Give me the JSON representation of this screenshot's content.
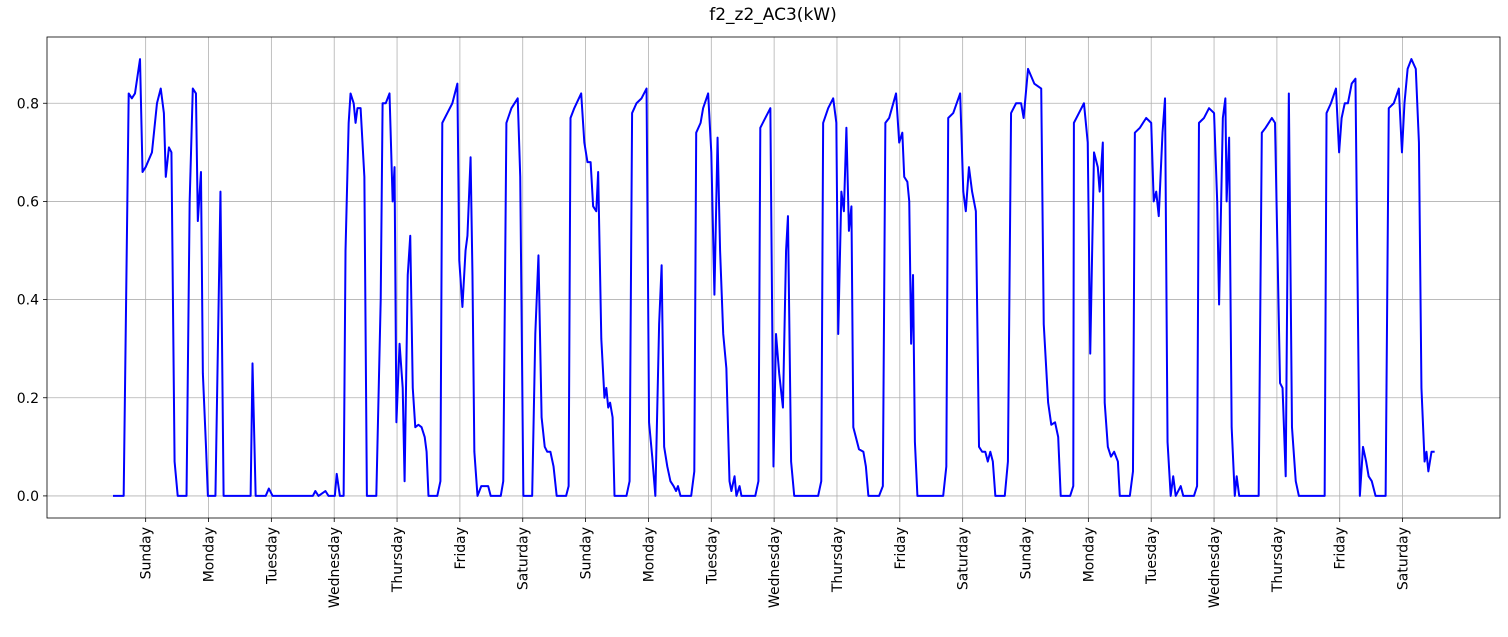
{
  "chart_data": {
    "type": "line",
    "title": "f2_z2_AC3(kW)",
    "color": "#0000ff",
    "grid": true,
    "x": [
      0.48,
      0.65,
      0.73,
      0.78,
      0.83,
      0.91,
      0.95,
      1.0,
      1.1,
      1.18,
      1.24,
      1.29,
      1.32,
      1.37,
      1.41,
      1.46,
      1.51,
      1.65,
      1.7,
      1.75,
      1.8,
      1.83,
      1.88,
      1.91,
      1.96,
      1.99,
      2.11,
      2.19,
      2.24,
      2.67,
      2.7,
      2.75,
      2.91,
      2.96,
      3.02,
      3.66,
      3.7,
      3.75,
      3.86,
      3.91,
      4.01,
      4.04,
      4.09,
      4.15,
      4.18,
      4.23,
      4.26,
      4.31,
      4.34,
      4.37,
      4.42,
      4.48,
      4.52,
      4.67,
      4.74,
      4.77,
      4.82,
      4.88,
      4.93,
      4.96,
      4.99,
      5.04,
      5.09,
      5.12,
      5.17,
      5.21,
      5.25,
      5.29,
      5.34,
      5.39,
      5.44,
      5.47,
      5.5,
      5.64,
      5.69,
      5.72,
      5.8,
      5.88,
      5.96,
      5.99,
      6.04,
      6.09,
      6.12,
      6.17,
      6.2,
      6.23,
      6.28,
      6.34,
      6.45,
      6.49,
      6.65,
      6.69,
      6.74,
      6.82,
      6.92,
      6.96,
      7.01,
      7.15,
      7.2,
      7.25,
      7.3,
      7.35,
      7.39,
      7.44,
      7.49,
      7.54,
      7.69,
      7.73,
      7.76,
      7.82,
      7.93,
      7.98,
      8.03,
      8.08,
      8.12,
      8.17,
      8.2,
      8.25,
      8.3,
      8.33,
      8.36,
      8.39,
      8.43,
      8.46,
      8.65,
      8.7,
      8.74,
      8.81,
      8.89,
      8.97,
      9.01,
      9.06,
      9.11,
      9.17,
      9.21,
      9.25,
      9.3,
      9.35,
      9.4,
      9.44,
      9.47,
      9.51,
      9.68,
      9.73,
      9.76,
      9.83,
      9.87,
      9.95,
      10.0,
      10.05,
      10.1,
      10.14,
      10.19,
      10.24,
      10.29,
      10.32,
      10.37,
      10.4,
      10.45,
      10.48,
      10.7,
      10.75,
      10.78,
      10.86,
      10.94,
      10.95,
      10.99,
      11.03,
      11.08,
      11.14,
      11.19,
      11.22,
      11.27,
      11.32,
      11.7,
      11.75,
      11.78,
      11.86,
      11.94,
      11.99,
      12.02,
      12.07,
      12.11,
      12.15,
      12.19,
      12.23,
      12.26,
      12.3,
      12.35,
      12.42,
      12.46,
      12.5,
      12.67,
      12.73,
      12.77,
      12.83,
      12.94,
      12.99,
      13.04,
      13.07,
      13.12,
      13.15,
      13.18,
      13.21,
      13.24,
      13.28,
      13.69,
      13.74,
      13.77,
      13.85,
      13.96,
      14.01,
      14.05,
      14.1,
      14.15,
      14.21,
      14.26,
      14.31,
      14.36,
      14.4,
      14.44,
      14.48,
      14.52,
      14.67,
      14.72,
      14.77,
      14.85,
      14.93,
      14.97,
      15.04,
      15.14,
      15.25,
      15.29,
      15.36,
      15.41,
      15.47,
      15.52,
      15.56,
      15.71,
      15.76,
      15.77,
      15.85,
      15.93,
      15.99,
      16.03,
      16.09,
      16.15,
      16.18,
      16.23,
      16.26,
      16.31,
      16.36,
      16.41,
      16.47,
      16.5,
      16.66,
      16.71,
      16.74,
      16.82,
      16.92,
      17.0,
      17.04,
      17.08,
      17.12,
      17.18,
      17.22,
      17.26,
      17.31,
      17.35,
      17.39,
      17.47,
      17.51,
      17.68,
      17.73,
      17.76,
      17.84,
      17.92,
      18.0,
      18.05,
      18.08,
      18.14,
      18.18,
      18.2,
      18.24,
      18.28,
      18.33,
      18.36,
      18.4,
      18.71,
      18.76,
      18.82,
      18.92,
      18.97,
      19.05,
      19.09,
      19.14,
      19.19,
      19.24,
      19.3,
      19.35,
      19.76,
      19.79,
      19.86,
      19.94,
      19.99,
      20.03,
      20.08,
      20.13,
      20.19,
      20.25,
      20.32,
      20.37,
      20.42,
      20.46,
      20.51,
      20.57,
      20.73,
      20.78,
      20.86,
      20.94,
      20.99,
      21.03,
      21.08,
      21.14,
      21.21,
      21.26,
      21.3,
      21.35,
      21.38,
      21.41,
      21.46,
      21.51
    ],
    "values": [
      0,
      0,
      0.82,
      0.81,
      0.82,
      0.89,
      0.66,
      0.67,
      0.7,
      0.8,
      0.83,
      0.78,
      0.65,
      0.71,
      0.7,
      0.07,
      0,
      0,
      0.6,
      0.83,
      0.82,
      0.56,
      0.66,
      0.25,
      0.1,
      0,
      0,
      0.62,
      0,
      0,
      0.27,
      0,
      0,
      0.015,
      0,
      0,
      0.01,
      0,
      0.01,
      0,
      0,
      0.045,
      0,
      0,
      0.5,
      0.76,
      0.82,
      0.8,
      0.76,
      0.79,
      0.79,
      0.65,
      0,
      0,
      0.4,
      0.8,
      0.8,
      0.82,
      0.6,
      0.67,
      0.15,
      0.31,
      0.22,
      0.03,
      0.45,
      0.53,
      0.22,
      0.14,
      0.145,
      0.14,
      0.12,
      0.09,
      0,
      0,
      0.03,
      0.76,
      0.78,
      0.8,
      0.84,
      0.48,
      0.385,
      0.5,
      0.53,
      0.69,
      0.45,
      0.09,
      0,
      0.02,
      0.02,
      0,
      0,
      0.03,
      0.76,
      0.79,
      0.81,
      0.65,
      0,
      0,
      0.33,
      0.49,
      0.16,
      0.1,
      0.09,
      0.09,
      0.06,
      0,
      0,
      0.02,
      0.77,
      0.79,
      0.82,
      0.72,
      0.68,
      0.68,
      0.59,
      0.58,
      0.66,
      0.32,
      0.2,
      0.22,
      0.18,
      0.19,
      0.16,
      0,
      0,
      0.03,
      0.78,
      0.8,
      0.81,
      0.83,
      0.15,
      0.08,
      0,
      0.35,
      0.47,
      0.1,
      0.06,
      0.03,
      0.02,
      0.01,
      0.02,
      0,
      0,
      0.05,
      0.74,
      0.76,
      0.79,
      0.82,
      0.7,
      0.41,
      0.73,
      0.5,
      0.33,
      0.26,
      0.03,
      0.01,
      0.04,
      0,
      0.02,
      0,
      0,
      0.03,
      0.75,
      0.77,
      0.79,
      0.64,
      0.06,
      0.33,
      0.25,
      0.18,
      0.5,
      0.57,
      0.07,
      0,
      0,
      0.03,
      0.76,
      0.79,
      0.81,
      0.76,
      0.33,
      0.62,
      0.58,
      0.75,
      0.54,
      0.59,
      0.14,
      0.12,
      0.095,
      0.09,
      0.06,
      0,
      0,
      0.02,
      0.76,
      0.77,
      0.82,
      0.72,
      0.74,
      0.65,
      0.64,
      0.6,
      0.31,
      0.45,
      0.11,
      0,
      0,
      0.06,
      0.77,
      0.78,
      0.82,
      0.62,
      0.58,
      0.67,
      0.62,
      0.58,
      0.1,
      0.09,
      0.09,
      0.07,
      0.09,
      0.07,
      0,
      0,
      0.07,
      0.78,
      0.8,
      0.8,
      0.77,
      0.87,
      0.84,
      0.83,
      0.35,
      0.19,
      0.145,
      0.15,
      0.12,
      0,
      0,
      0.02,
      0.76,
      0.78,
      0.8,
      0.72,
      0.29,
      0.7,
      0.67,
      0.62,
      0.72,
      0.19,
      0.1,
      0.08,
      0.09,
      0.07,
      0,
      0,
      0.05,
      0.74,
      0.75,
      0.77,
      0.76,
      0.6,
      0.62,
      0.57,
      0.74,
      0.81,
      0.11,
      0,
      0.04,
      0,
      0.02,
      0,
      0,
      0.02,
      0.76,
      0.77,
      0.79,
      0.78,
      0.6,
      0.39,
      0.77,
      0.81,
      0.6,
      0.73,
      0.14,
      0,
      0.04,
      0,
      0,
      0.74,
      0.75,
      0.77,
      0.76,
      0.23,
      0.22,
      0.04,
      0.82,
      0.14,
      0.03,
      0,
      0,
      0.78,
      0.8,
      0.83,
      0.7,
      0.77,
      0.8,
      0.8,
      0.84,
      0.85,
      0,
      0.1,
      0.07,
      0.04,
      0.03,
      0,
      0,
      0.79,
      0.8,
      0.83,
      0.7,
      0.8,
      0.87,
      0.89,
      0.87,
      0.72,
      0.22,
      0.07,
      0.09,
      0.05,
      0.09,
      0.09
    ],
    "xlim": [
      -0.57,
      22.55
    ],
    "xticks": [
      {
        "value": 1,
        "label": "Sunday"
      },
      {
        "value": 2,
        "label": "Monday"
      },
      {
        "value": 3,
        "label": "Tuesday"
      },
      {
        "value": 4,
        "label": "Wednesday"
      },
      {
        "value": 5,
        "label": "Thursday"
      },
      {
        "value": 6,
        "label": "Friday"
      },
      {
        "value": 7,
        "label": "Saturday"
      },
      {
        "value": 8,
        "label": "Sunday"
      },
      {
        "value": 9,
        "label": "Monday"
      },
      {
        "value": 10,
        "label": "Tuesday"
      },
      {
        "value": 11,
        "label": "Wednesday"
      },
      {
        "value": 12,
        "label": "Thursday"
      },
      {
        "value": 13,
        "label": "Friday"
      },
      {
        "value": 14,
        "label": "Saturday"
      },
      {
        "value": 15,
        "label": "Sunday"
      },
      {
        "value": 16,
        "label": "Monday"
      },
      {
        "value": 17,
        "label": "Tuesday"
      },
      {
        "value": 18,
        "label": "Wednesday"
      },
      {
        "value": 19,
        "label": "Thursday"
      },
      {
        "value": 20,
        "label": "Friday"
      },
      {
        "value": 21,
        "label": "Saturday"
      }
    ],
    "ylim": [
      -0.045,
      0.935
    ],
    "yticks": [
      {
        "value": 0,
        "label": "0.0"
      },
      0.2,
      0.4,
      0.6,
      0.8
    ]
  }
}
